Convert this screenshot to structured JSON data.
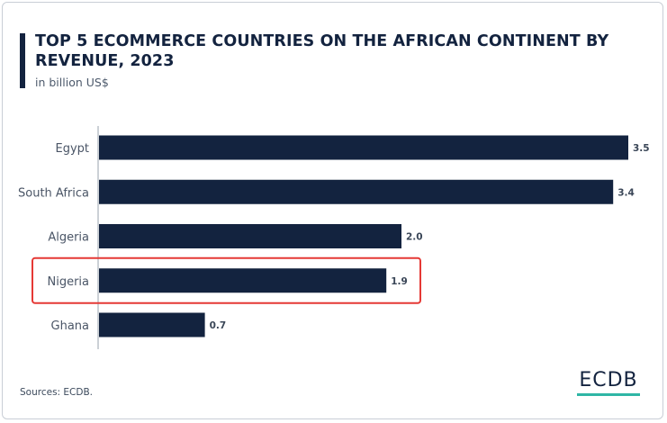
{
  "header": {
    "title": "TOP 5 ECOMMERCE COUNTRIES ON THE AFRICAN CONTINENT BY REVENUE, 2023",
    "subtitle": "in billion US$"
  },
  "footer": {
    "source": "Sources: ECDB.",
    "logo": "ECDB"
  },
  "colors": {
    "bar": "#13233f",
    "highlight_box": "#e53935",
    "logo_accent": "#2fb6a5"
  },
  "chart_data": {
    "type": "bar",
    "orientation": "horizontal",
    "title": "TOP 5 ECOMMERCE COUNTRIES ON THE AFRICAN CONTINENT BY REVENUE, 2023",
    "subtitle": "in billion US$",
    "categories": [
      "Egypt",
      "South Africa",
      "Algeria",
      "Nigeria",
      "Ghana"
    ],
    "values": [
      3.5,
      3.4,
      2.0,
      1.9,
      0.7
    ],
    "value_labels": [
      "3.5",
      "3.4",
      "2.0",
      "1.9",
      "0.7"
    ],
    "xlim": [
      0,
      3.5
    ],
    "grid": false,
    "highlighted_category": "Nigeria",
    "xlabel": "",
    "ylabel": ""
  }
}
